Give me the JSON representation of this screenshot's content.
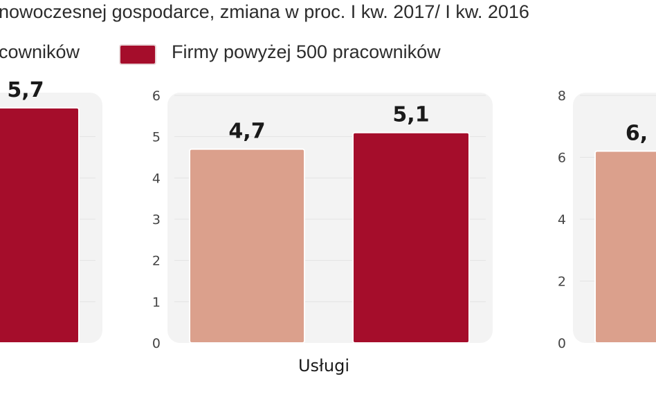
{
  "title": "nowoczesnej gospodarce, zmiana w proc. I kw. 2017/ I kw. 2016",
  "legend": [
    {
      "label": "cowników",
      "color": "#dba08c"
    },
    {
      "label": "Firmy powyżej 500 pracowników",
      "color": "#a50d2b"
    }
  ],
  "chart_data": [
    {
      "type": "bar",
      "categories": [
        ""
      ],
      "series": [
        {
          "name": "Firmy powyżej 500 pracowników",
          "values": [
            5.7
          ],
          "labels": [
            "5,7"
          ]
        }
      ]
    },
    {
      "type": "bar",
      "categories": [
        "Usługi"
      ],
      "ylim": [
        0,
        6
      ],
      "yticks": [
        "0",
        "1",
        "2",
        "3",
        "4",
        "5",
        "6"
      ],
      "series": [
        {
          "values": [
            4.7
          ],
          "labels": [
            "4,7"
          ]
        },
        {
          "name": "Firmy powyżej 500 pracowników",
          "values": [
            5.1
          ],
          "labels": [
            "5,1"
          ]
        }
      ]
    },
    {
      "type": "bar",
      "categories": [
        ""
      ],
      "ylim": [
        0,
        8
      ],
      "yticks": [
        "0",
        "2",
        "4",
        "6",
        "8"
      ],
      "series": [
        {
          "values": [
            6.2
          ],
          "labels": [
            "6,"
          ]
        }
      ]
    }
  ]
}
